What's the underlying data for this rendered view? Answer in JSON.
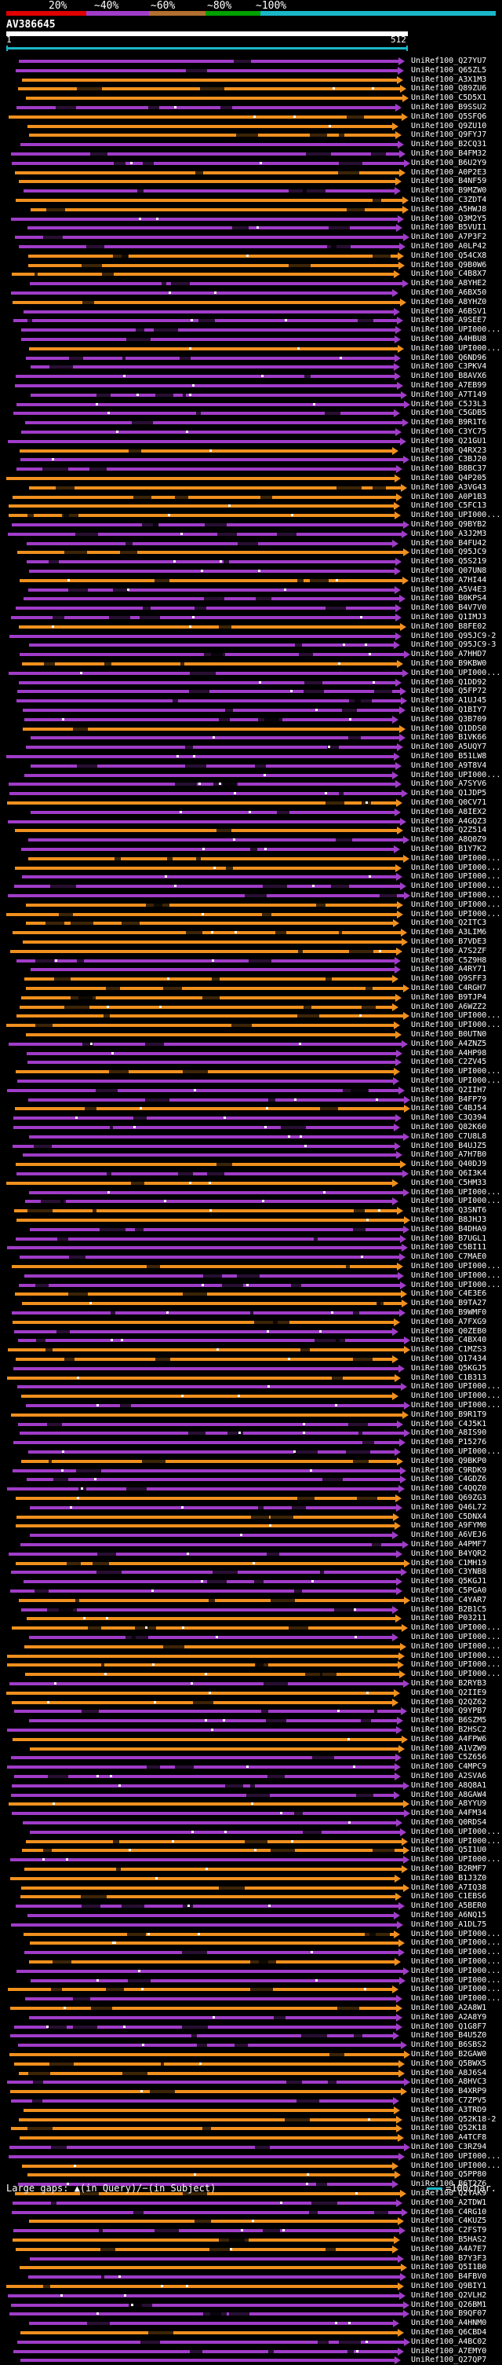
{
  "legend": {
    "labels": [
      "20%",
      "~40%",
      "~60%",
      "~80%",
      "~100%"
    ],
    "colors": [
      "#e00000",
      "#a03cc8",
      "#b07030",
      "#00a000",
      "#19b7c8"
    ]
  },
  "query": {
    "name": "AV386645",
    "start": "1",
    "end": "512"
  },
  "footer": {
    "text": "Large gaps: ▲(in Query)/−(in Subject)",
    "scale": "=100char."
  },
  "hit_colors": {
    "purple": "#a03cc8",
    "orange": "#f0901e"
  },
  "hits": [
    "UniRef100_Q27YU7",
    "UniRef100_Q65ZL5",
    "UniRef100_A3X1M3",
    "UniRef100_Q89ZU6",
    "UniRef100_C5D5X1",
    "UniRef100_B9SSU2",
    "UniRef100_Q5SFQ6",
    "UniRef100_Q9ZU10",
    "UniRef100_Q9FYJ7",
    "UniRef100_B2CQ31",
    "UniRef100_B4FM32",
    "UniRef100_B6U2Y9",
    "UniRef100_A0P2E3",
    "UniRef100_B4NF59",
    "UniRef100_B9MZW0",
    "UniRef100_C3ZDT4",
    "UniRef100_A5HWJ8",
    "UniRef100_Q3M2Y5",
    "UniRef100_B5VUI1",
    "UniRef100_A7P3F2",
    "UniRef100_A0LP42",
    "UniRef100_Q54CX8",
    "UniRef100_Q9B0W6",
    "UniRef100_C4B8X7",
    "UniRef100_A8YHE2",
    "UniRef100_A6BX50",
    "UniRef100_A8YHZ0",
    "UniRef100_A6BSV1",
    "UniRef100_A9SEE7",
    "UniRef100_UPI000...",
    "UniRef100_A4HBU8",
    "UniRef100_UPI000...",
    "UniRef100_Q6ND96",
    "UniRef100_C3PKV4",
    "UniRef100_B8AVX6",
    "UniRef100_A7EB99",
    "UniRef100_A7T149",
    "UniRef100_C5J3L3",
    "UniRef100_C5GDB5",
    "UniRef100_B9R1T6",
    "UniRef100_C3YC75",
    "UniRef100_Q21GU1",
    "UniRef100_Q4RX23",
    "UniRef100_C3BJ20",
    "UniRef100_B8BC37",
    "UniRef100_Q4P205",
    "UniRef100_A3VG43",
    "UniRef100_A0P1B3",
    "UniRef100_C5FC13",
    "UniRef100_UPI000...",
    "UniRef100_Q9BYB2",
    "UniRef100_A3J2M3",
    "UniRef100_B4FU42",
    "UniRef100_Q95JC9",
    "UniRef100_Q5S219",
    "UniRef100_Q07UN8",
    "UniRef100_A7HI44",
    "UniRef100_A5V4E3",
    "UniRef100_B0KPS4",
    "UniRef100_B4V7V0",
    "UniRef100_Q1IMJ3",
    "UniRef100_B8FE02",
    "UniRef100_Q95JC9-2",
    "UniRef100_Q95JC9-3",
    "UniRef100_A7HHD7",
    "UniRef100_B9KBW0",
    "UniRef100_UPI000...",
    "UniRef100_Q1DD92",
    "UniRef100_Q5FP72",
    "UniRef100_A1UJ45",
    "UniRef100_Q1BIY7",
    "UniRef100_Q3B709",
    "UniRef100_Q1DDS0",
    "UniRef100_B1VK66",
    "UniRef100_A5UQY7",
    "UniRef100_B51LW8",
    "UniRef100_A9T8V4",
    "UniRef100_UPI000...",
    "UniRef100_A7SYV6",
    "UniRef100_Q1JDP5",
    "UniRef100_Q0CV71",
    "UniRef100_A8IEX2",
    "UniRef100_A4GQZ3",
    "UniRef100_Q2Z514",
    "UniRef100_A8Q0Z9",
    "UniRef100_B1Y7K2",
    "UniRef100_UPI000...",
    "UniRef100_UPI000...",
    "UniRef100_UPI000...",
    "UniRef100_UPI000...",
    "UniRef100_UPI000...",
    "UniRef100_UPI000...",
    "UniRef100_UPI000...",
    "UniRef100_Q2ITC3",
    "UniRef100_A3LIM6",
    "UniRef100_B7VDE3",
    "UniRef100_A7S2ZF",
    "UniRef100_C5Z9H8",
    "UniRef100_A4RY71",
    "UniRef100_Q9SFF3",
    "UniRef100_C4RGH7",
    "UniRef100_B9TJP4",
    "UniRef100_A6WZZ2",
    "UniRef100_UPI000...",
    "UniRef100_UPI000...",
    "UniRef100_B0UTN0",
    "UniRef100_A4ZNZ5",
    "UniRef100_A4HP98",
    "UniRef100_C2ZV45",
    "UniRef100_UPI000...",
    "UniRef100_UPI000...",
    "UniRef100_Q2IIH7",
    "UniRef100_B4FP79",
    "UniRef100_C4BJ54",
    "UniRef100_C3Q394",
    "UniRef100_Q82K60",
    "UniRef100_C7U8L8",
    "UniRef100_B4UJZ5",
    "UniRef100_A7H7B0",
    "UniRef100_Q40DJ9",
    "UniRef100_Q6I3K4",
    "UniRef100_C5HM33",
    "UniRef100_UPI000...",
    "UniRef100_UPI000...",
    "UniRef100_Q3SNT6",
    "UniRef100_B8JHJ3",
    "UniRef100_B4DHA9",
    "UniRef100_B7UGL1",
    "UniRef100_C5BI11",
    "UniRef100_C7MAE0",
    "UniRef100_UPI000...",
    "UniRef100_UPI000...",
    "UniRef100_UPI000...",
    "UniRef100_C4E3E6",
    "UniRef100_B9TA27",
    "UniRef100_B9WMF0",
    "UniRef100_A7FXG9",
    "UniRef100_Q0ZEB0",
    "UniRef100_C4BX40",
    "UniRef100_C1MZS3",
    "UniRef100_Q17434",
    "UniRef100_Q5KGJ5",
    "UniRef100_C1B313",
    "UniRef100_UPI000...",
    "UniRef100_UPI000...",
    "UniRef100_UPI000...",
    "UniRef100_B9R1T9",
    "UniRef100_C4J5K1",
    "UniRef100_A8IS90",
    "UniRef100_P15276",
    "UniRef100_UPI000...",
    "UniRef100_Q9BKP0",
    "UniRef100_C9RDK9",
    "UniRef100_C4GDZ6",
    "UniRef100_C4QQZ0",
    "UniRef100_Q69ZG3",
    "UniRef100_Q46L72",
    "UniRef100_C5DNX4",
    "UniRef100_A9FYM0",
    "UniRef100_A6VEJ6",
    "UniRef100_A4PMF7",
    "UniRef100_B4YQR2",
    "UniRef100_C1MH19",
    "UniRef100_C3YNB8",
    "UniRef100_Q5KGJ1",
    "UniRef100_C5PGA0",
    "UniRef100_C4YAR7",
    "UniRef100_B2B1C5",
    "UniRef100_P03211",
    "UniRef100_UPI000...",
    "UniRef100_UPI000...",
    "UniRef100_UPI000...",
    "UniRef100_UPI000...",
    "UniRef100_UPI000...",
    "UniRef100_UPI000...",
    "UniRef100_B2RYB3",
    "UniRef100_Q2IIE9",
    "UniRef100_Q2QZ62",
    "UniRef100_Q9YPB7",
    "UniRef100_B6SZM5",
    "UniRef100_B2HSC2",
    "UniRef100_A4FPW6",
    "UniRef100_A1VZW9",
    "UniRef100_C5Z656",
    "UniRef100_C4MPC9",
    "UniRef100_A2SVA6",
    "UniRef100_A8Q8A1",
    "UniRef100_A8GAW4",
    "UniRef100_A8YYU9",
    "UniRef100_A4FM34",
    "UniRef100_Q0RDS4",
    "UniRef100_UPI000...",
    "UniRef100_UPI000...",
    "UniRef100_Q5I1U0",
    "UniRef100_UPI000...",
    "UniRef100_B2RMF7",
    "UniRef100_B1J3Z0",
    "UniRef100_A7IQ38",
    "UniRef100_C1EBS6",
    "UniRef100_A5BER0",
    "UniRef100_A6NQ15",
    "UniRef100_A1DL75",
    "UniRef100_UPI000...",
    "UniRef100_UPI000...",
    "UniRef100_UPI000...",
    "UniRef100_UPI000...",
    "UniRef100_UPI000...",
    "UniRef100_UPI000...",
    "UniRef100_UPI000...",
    "UniRef100_UPI000...",
    "UniRef100_A2A8W1",
    "UniRef100_A2A8Y9",
    "UniRef100_Q1G8F7",
    "UniRef100_B4U5Z0",
    "UniRef100_B6SBS2",
    "UniRef100_B2GAW0",
    "UniRef100_Q5BWX5",
    "UniRef100_A8J6S4",
    "UniRef100_A8HVC3",
    "UniRef100_B4XRP9",
    "UniRef100_C7ZPV5",
    "UniRef100_A3TRD9",
    "UniRef100_Q52K18-2",
    "UniRef100_Q52K18",
    "UniRef100_A4TCF8",
    "UniRef100_C3RZ94",
    "UniRef100_UPI000...",
    "UniRef100_UPI000...",
    "UniRef100_Q5PP80",
    "UniRef100_B6T2Z6",
    "UniRef100_Q2YAK9",
    "UniRef100_A2TDW1",
    "UniRef100_C4RG10",
    "UniRef100_C4KUZ5",
    "UniRef100_C2FST9",
    "UniRef100_B5HAS2",
    "UniRef100_A4A7E7",
    "UniRef100_B7Y3F3",
    "UniRef100_Q5I1B0",
    "UniRef100_B4FBV0",
    "UniRef100_Q9BIY1",
    "UniRef100_Q2VLH2",
    "UniRef100_Q26BM1",
    "UniRef100_B9QF07",
    "UniRef100_A4HNM0",
    "UniRef100_Q6CBD4",
    "UniRef100_A4BC02",
    "UniRef100_A7EMY0",
    "UniRef100_Q27QP7"
  ]
}
